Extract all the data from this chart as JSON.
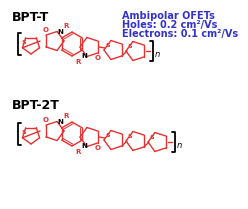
{
  "bg_color": "#ffffff",
  "title_color": "#000000",
  "struct_color": "#e83030",
  "text_blue": "#3333cc",
  "label_bpt_t": "BPT-T",
  "label_bpt_2t": "BPT-2T",
  "line1": "Ambipolar OFETs",
  "line2": "Holes: 0.2 cm²/Vs",
  "line3": "Electrons: 0.1 cm²/Vs",
  "label_fontsize": 9,
  "info_fontsize": 7.0,
  "struct_lw": 1.0,
  "n_fontsize": 6,
  "bracket_color": "#000000"
}
